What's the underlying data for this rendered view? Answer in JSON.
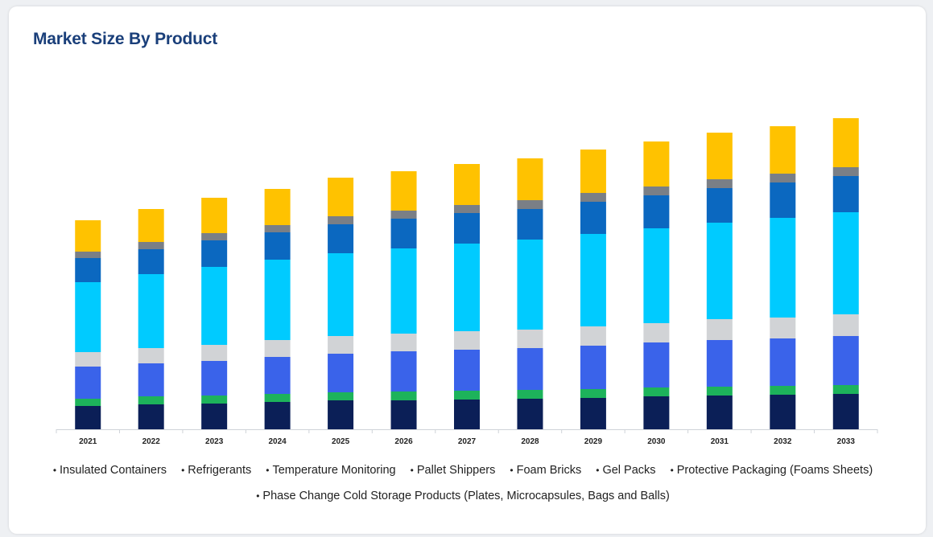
{
  "page": {
    "title": "Market Size By Product"
  },
  "chart_data": {
    "type": "bar",
    "stacked": true,
    "categories": [
      "2021",
      "2022",
      "2023",
      "2024",
      "2025",
      "2026",
      "2027",
      "2028",
      "2029",
      "2030",
      "2031",
      "2032",
      "2033"
    ],
    "legend": [
      "Insulated Containers",
      "Refrigerants",
      "Temperature Monitoring",
      "Pallet Shippers",
      "Foam Bricks",
      "Gel Packs",
      "Protective Packaging (Foams Sheets)",
      "Phase Change Cold Storage Products (Plates, Microcapsules, Bags and Balls)"
    ],
    "series": [
      {
        "color": "#0b1f57",
        "values": [
          29,
          31,
          32,
          34,
          36,
          36,
          37,
          38,
          39,
          41,
          42,
          43,
          44
        ]
      },
      {
        "color": "#1db35b",
        "values": [
          9,
          10,
          10,
          10,
          10,
          11,
          11,
          11,
          11,
          11,
          11,
          11,
          11
        ]
      },
      {
        "color": "#3a63ea",
        "values": [
          40,
          41,
          43,
          46,
          48,
          50,
          51,
          52,
          54,
          56,
          58,
          59,
          61
        ]
      },
      {
        "color": "#d1d3d6",
        "values": [
          18,
          19,
          20,
          21,
          22,
          22,
          23,
          23,
          24,
          24,
          26,
          26,
          27
        ]
      },
      {
        "color": "#00cbff",
        "values": [
          87,
          92,
          97,
          100,
          103,
          106,
          109,
          112,
          115,
          118,
          120,
          124,
          127
        ]
      },
      {
        "color": "#0b68c0",
        "values": [
          30,
          31,
          33,
          34,
          36,
          37,
          38,
          38,
          40,
          41,
          43,
          44,
          45
        ]
      },
      {
        "color": "#7a7f86",
        "values": [
          8,
          9,
          9,
          9,
          10,
          10,
          10,
          11,
          11,
          11,
          11,
          11,
          11
        ]
      },
      {
        "color": "#ffc200",
        "values": [
          39,
          41,
          44,
          45,
          48,
          49,
          51,
          52,
          54,
          56,
          58,
          59,
          61
        ]
      }
    ],
    "ylim": [
      0,
      400
    ]
  }
}
